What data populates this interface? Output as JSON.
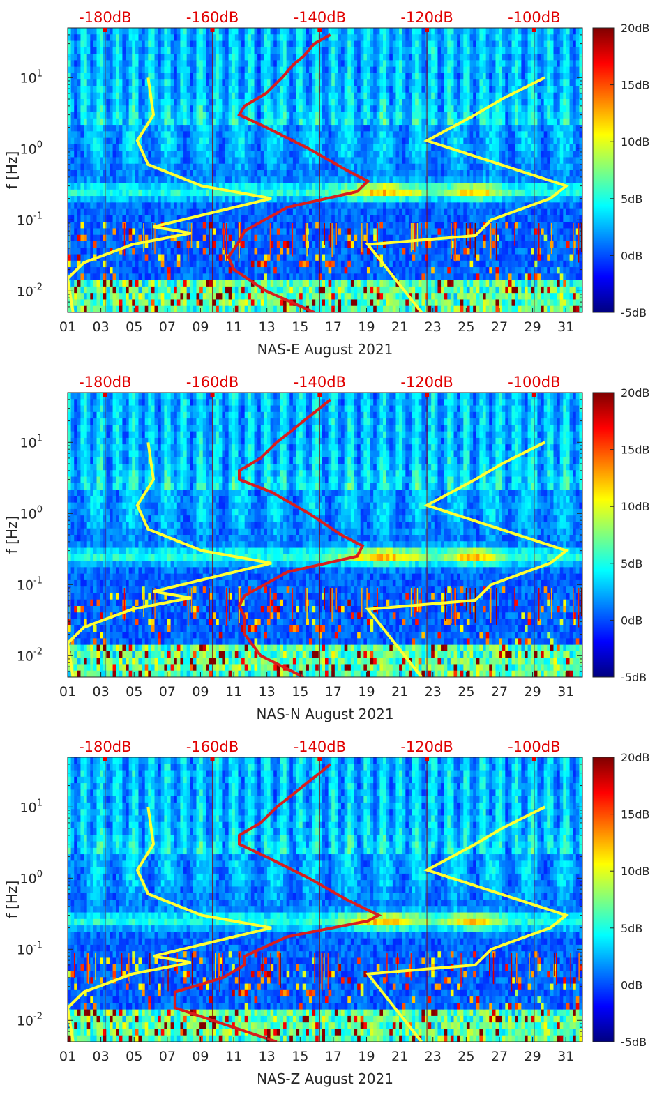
{
  "colors": {
    "background": "#ffffff",
    "axis_text": "#262626",
    "top_axis_text": "#e10000",
    "model_curve": "#d81e1e",
    "noise_model_curves": "#ffff33",
    "colormap": [
      "#00007f",
      "#0000ff",
      "#007fff",
      "#00ffff",
      "#7fff7f",
      "#ffff00",
      "#ff7f00",
      "#ff0000",
      "#7f0000"
    ]
  },
  "chart_data": [
    {
      "type": "heatmap",
      "xlabel": "NAS-E August 2021",
      "ylabel": "f [Hz]",
      "x_tick_labels": [
        "01",
        "03",
        "05",
        "07",
        "09",
        "11",
        "13",
        "15",
        "17",
        "19",
        "21",
        "23",
        "25",
        "27",
        "29",
        "31"
      ],
      "y_tick_labels": [
        "10^-2",
        "10^-1",
        "10^0",
        "10^1"
      ],
      "y_scale": "log",
      "ylim": [
        0.005,
        50
      ],
      "xlim": [
        1,
        32
      ],
      "top_tick_labels": [
        "-180dB",
        "-160dB",
        "-140dB",
        "-120dB",
        "-100dB"
      ],
      "top_axis_range_db": [
        -187,
        -91
      ],
      "colorbar": {
        "ticks": [
          "20dB",
          "15dB",
          "10dB",
          "5dB",
          "0dB",
          "-5dB"
        ],
        "range": [
          -5,
          20
        ]
      },
      "noise_models_db": {
        "low": [
          [
            0.005,
            -186
          ],
          [
            0.015,
            -187
          ],
          [
            0.025,
            -184
          ],
          [
            0.045,
            -175
          ],
          [
            0.065,
            -164
          ],
          [
            0.08,
            -171
          ],
          [
            0.2,
            -149
          ],
          [
            0.3,
            -162
          ],
          [
            0.6,
            -172
          ],
          [
            1.3,
            -174
          ],
          [
            3,
            -171
          ],
          [
            10,
            -172
          ]
        ],
        "high": [
          [
            0.005,
            -121
          ],
          [
            0.045,
            -131
          ],
          [
            0.06,
            -111
          ],
          [
            0.1,
            -108
          ],
          [
            0.2,
            -97
          ],
          [
            0.3,
            -94
          ],
          [
            1.3,
            -120
          ],
          [
            3,
            -111
          ],
          [
            5,
            -106
          ],
          [
            10,
            -98
          ]
        ]
      },
      "station_psd_db": [
        [
          0.005,
          -141
        ],
        [
          0.01,
          -150
        ],
        [
          0.02,
          -156
        ],
        [
          0.03,
          -157
        ],
        [
          0.05,
          -155
        ],
        [
          0.07,
          -154
        ],
        [
          0.15,
          -146
        ],
        [
          0.25,
          -133
        ],
        [
          0.35,
          -131
        ],
        [
          0.5,
          -135
        ],
        [
          1,
          -142
        ],
        [
          2,
          -150
        ],
        [
          3,
          -155
        ],
        [
          4,
          -154
        ],
        [
          6,
          -150
        ],
        [
          10,
          -147
        ],
        [
          15,
          -145
        ],
        [
          20,
          -143
        ],
        [
          30,
          -141
        ],
        [
          40,
          -138
        ]
      ]
    },
    {
      "type": "heatmap",
      "xlabel": "NAS-N August 2021",
      "ylabel": "f [Hz]",
      "x_tick_labels": [
        "01",
        "03",
        "05",
        "07",
        "09",
        "11",
        "13",
        "15",
        "17",
        "19",
        "21",
        "23",
        "25",
        "27",
        "29",
        "31"
      ],
      "y_tick_labels": [
        "10^-2",
        "10^-1",
        "10^0",
        "10^1"
      ],
      "y_scale": "log",
      "ylim": [
        0.005,
        50
      ],
      "xlim": [
        1,
        32
      ],
      "top_tick_labels": [
        "-180dB",
        "-160dB",
        "-140dB",
        "-120dB",
        "-100dB"
      ],
      "top_axis_range_db": [
        -187,
        -91
      ],
      "colorbar": {
        "ticks": [
          "20dB",
          "15dB",
          "10dB",
          "5dB",
          "0dB",
          "-5dB"
        ],
        "range": [
          -5,
          20
        ]
      },
      "noise_models_db": {
        "low": [
          [
            0.005,
            -186
          ],
          [
            0.015,
            -187
          ],
          [
            0.025,
            -184
          ],
          [
            0.045,
            -175
          ],
          [
            0.065,
            -164
          ],
          [
            0.08,
            -171
          ],
          [
            0.2,
            -149
          ],
          [
            0.3,
            -162
          ],
          [
            0.6,
            -172
          ],
          [
            1.3,
            -174
          ],
          [
            3,
            -171
          ],
          [
            10,
            -172
          ]
        ],
        "high": [
          [
            0.005,
            -121
          ],
          [
            0.045,
            -131
          ],
          [
            0.06,
            -111
          ],
          [
            0.1,
            -108
          ],
          [
            0.2,
            -97
          ],
          [
            0.3,
            -94
          ],
          [
            1.3,
            -120
          ],
          [
            3,
            -111
          ],
          [
            5,
            -106
          ],
          [
            10,
            -98
          ]
        ]
      },
      "station_psd_db": [
        [
          0.005,
          -143
        ],
        [
          0.01,
          -151
        ],
        [
          0.02,
          -154
        ],
        [
          0.035,
          -154
        ],
        [
          0.05,
          -155
        ],
        [
          0.07,
          -154
        ],
        [
          0.15,
          -146
        ],
        [
          0.25,
          -133
        ],
        [
          0.35,
          -132
        ],
        [
          0.5,
          -136
        ],
        [
          1,
          -142
        ],
        [
          2,
          -149
        ],
        [
          3,
          -155
        ],
        [
          4,
          -155
        ],
        [
          6,
          -151
        ],
        [
          10,
          -148
        ],
        [
          15,
          -145
        ],
        [
          20,
          -143
        ],
        [
          30,
          -140
        ],
        [
          40,
          -138
        ]
      ]
    },
    {
      "type": "heatmap",
      "xlabel": "NAS-Z August 2021",
      "ylabel": "f [Hz]",
      "x_tick_labels": [
        "01",
        "03",
        "05",
        "07",
        "09",
        "11",
        "13",
        "15",
        "17",
        "19",
        "21",
        "23",
        "25",
        "27",
        "29",
        "31"
      ],
      "y_tick_labels": [
        "10^-2",
        "10^-1",
        "10^0",
        "10^1"
      ],
      "y_scale": "log",
      "ylim": [
        0.005,
        50
      ],
      "xlim": [
        1,
        32
      ],
      "top_tick_labels": [
        "-180dB",
        "-160dB",
        "-140dB",
        "-120dB",
        "-100dB"
      ],
      "top_axis_range_db": [
        -187,
        -91
      ],
      "colorbar": {
        "ticks": [
          "20dB",
          "15dB",
          "10dB",
          "5dB",
          "0dB",
          "-5dB"
        ],
        "range": [
          -5,
          20
        ]
      },
      "noise_models_db": {
        "low": [
          [
            0.005,
            -186
          ],
          [
            0.015,
            -187
          ],
          [
            0.025,
            -184
          ],
          [
            0.045,
            -175
          ],
          [
            0.065,
            -164
          ],
          [
            0.08,
            -171
          ],
          [
            0.2,
            -149
          ],
          [
            0.3,
            -162
          ],
          [
            0.6,
            -172
          ],
          [
            1.3,
            -174
          ],
          [
            3,
            -171
          ],
          [
            10,
            -172
          ]
        ],
        "high": [
          [
            0.005,
            -121
          ],
          [
            0.045,
            -131
          ],
          [
            0.06,
            -111
          ],
          [
            0.1,
            -108
          ],
          [
            0.2,
            -97
          ],
          [
            0.3,
            -94
          ],
          [
            1.3,
            -120
          ],
          [
            3,
            -111
          ],
          [
            5,
            -106
          ],
          [
            10,
            -98
          ]
        ]
      },
      "station_psd_db": [
        [
          0.005,
          -148
        ],
        [
          0.015,
          -167
        ],
        [
          0.025,
          -167
        ],
        [
          0.04,
          -158
        ],
        [
          0.06,
          -154
        ],
        [
          0.08,
          -154
        ],
        [
          0.15,
          -146
        ],
        [
          0.25,
          -131
        ],
        [
          0.3,
          -129
        ],
        [
          0.5,
          -135
        ],
        [
          1,
          -142
        ],
        [
          2,
          -150
        ],
        [
          3,
          -155
        ],
        [
          4,
          -155
        ],
        [
          6,
          -151
        ],
        [
          10,
          -148
        ],
        [
          15,
          -145
        ],
        [
          20,
          -143
        ],
        [
          30,
          -140
        ],
        [
          40,
          -138
        ]
      ]
    }
  ]
}
